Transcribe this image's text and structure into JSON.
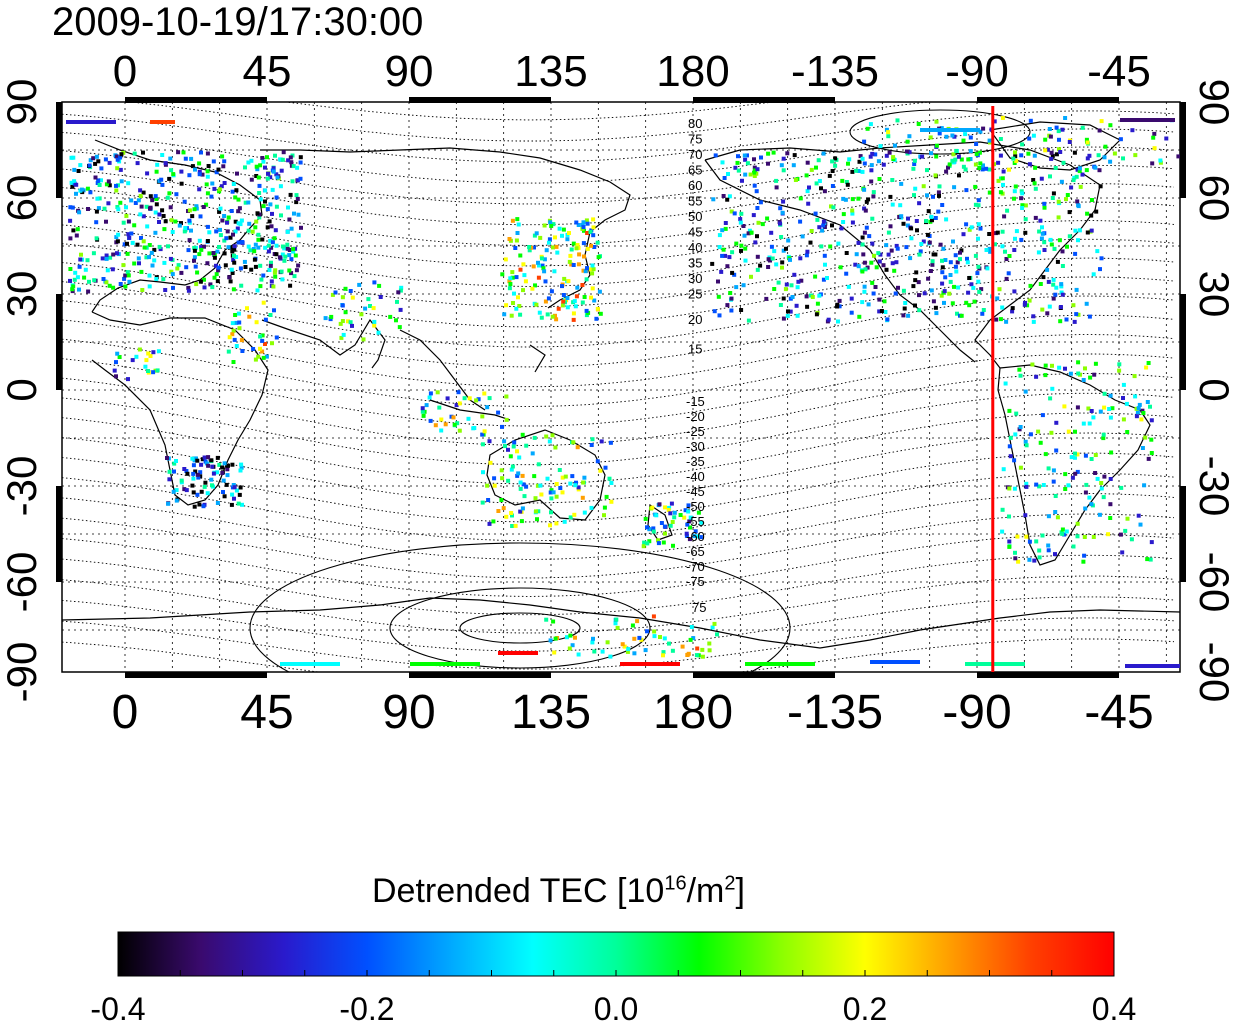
{
  "title": "2009-10-19/17:30:00",
  "map": {
    "x_top_ticks": [
      "0",
      "45",
      "90",
      "135",
      "180",
      "-135",
      "-90",
      "-45"
    ],
    "x_bottom_ticks": [
      "0",
      "45",
      "90",
      "135",
      "180",
      "-135",
      "-90",
      "-45"
    ],
    "y_left_ticks": [
      "90",
      "60",
      "30",
      "0",
      "-30",
      "-60",
      "-90"
    ],
    "y_right_ticks": [
      "90",
      "60",
      "30",
      "0",
      "-30",
      "-60",
      "-90"
    ],
    "contour_labels_north": [
      "80",
      "75",
      "70",
      "65",
      "60",
      "55",
      "50",
      "45",
      "40",
      "35",
      "30",
      "25",
      "20",
      "15"
    ],
    "contour_labels_south": [
      "-15",
      "-20",
      "-25",
      "-30",
      "-35",
      "-40",
      "-45",
      "-50",
      "-55",
      "-60",
      "-65",
      "-70",
      "-75"
    ],
    "contour_labels_south_tail": [
      "75"
    ],
    "marker_longitude": -85,
    "marker_color": "#ff0000"
  },
  "colorbar": {
    "title_text": "Detrended TEC  [10",
    "title_sup1": "16",
    "title_mid": "/m",
    "title_sup2": "2",
    "title_end": "]",
    "min": -0.4,
    "max": 0.4,
    "ticks": [
      "-0.4",
      "-0.2",
      "0.0",
      "0.2",
      "0.4"
    ],
    "colors": [
      "#000000",
      "#3a0a6e",
      "#2a1acc",
      "#0050ff",
      "#00a8ff",
      "#00ffff",
      "#00ff9a",
      "#00ff00",
      "#8cff00",
      "#ffff00",
      "#ffa000",
      "#ff4000",
      "#ff0000"
    ]
  }
}
